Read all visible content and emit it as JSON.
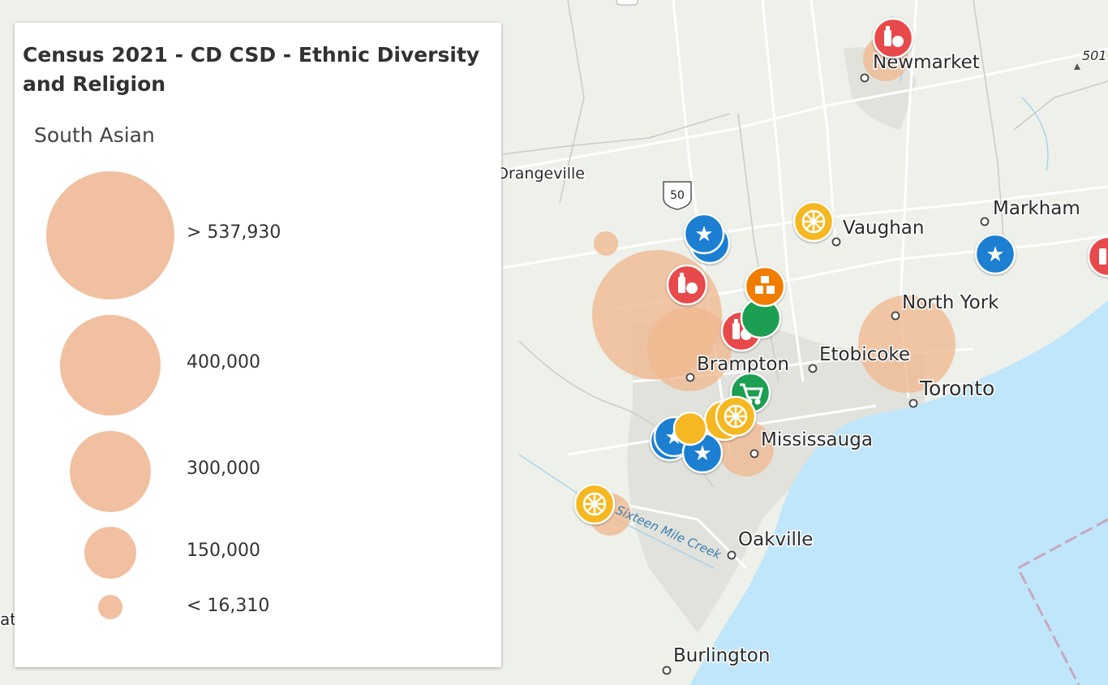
{
  "legend": {
    "title": "Census 2021 - CD CSD - Ethnic Diversity and Religion",
    "subtitle": "South Asian",
    "items": [
      {
        "label": "> 537,930"
      },
      {
        "label": "400,000"
      },
      {
        "label": "300,000"
      },
      {
        "label": "150,000"
      },
      {
        "label": "< 16,310"
      }
    ]
  },
  "map": {
    "places": {
      "newmarket": "Newmarket",
      "markham": "Markham",
      "vaughan": "Vaughan",
      "orangeville": "Orangeville",
      "north_york": "North York",
      "etobicoke": "Etobicoke",
      "brampton": "Brampton",
      "toronto": "Toronto",
      "mississauga": "Mississauga",
      "oakville": "Oakville",
      "burlington": "Burlington",
      "partial_left": "at",
      "partial_topright": "501"
    },
    "highway_shield": "50",
    "water_label": "Sixteen Mile Creek",
    "colors": {
      "land": "#eef0ea",
      "water": "#bfe6fb",
      "proportional_symbol": "#f0b88f",
      "marker_blue": "#1a7fd1",
      "marker_red": "#e8484c",
      "marker_yellow": "#f5b823",
      "marker_green": "#1f9e52",
      "marker_orange": "#f07d00"
    },
    "marker_icons": {
      "blue": "star-icon",
      "red": "grocery-bottle-icon",
      "yellow": "citrus-icon",
      "green": "shopping-cart-icon",
      "orange": "boxes-icon"
    }
  }
}
